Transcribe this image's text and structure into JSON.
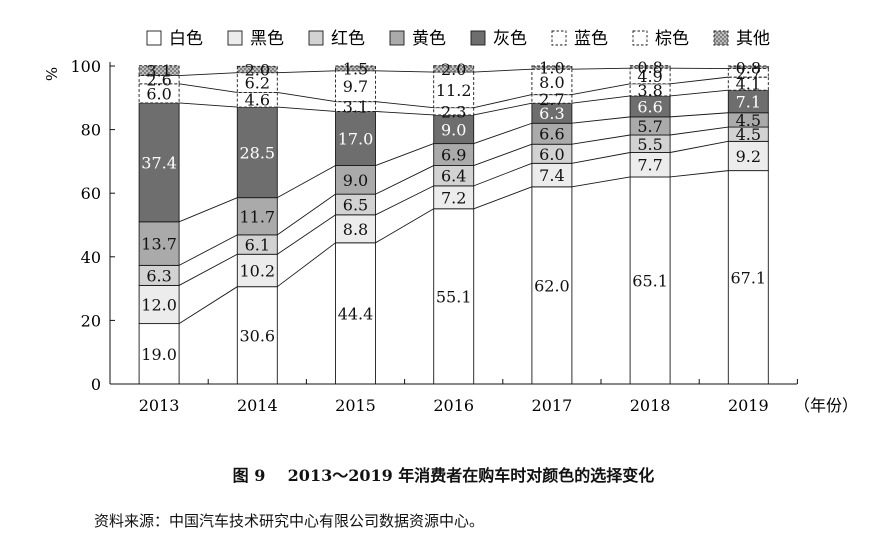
{
  "chart_data": {
    "type": "bar",
    "stacked": true,
    "categories": [
      "2013",
      "2014",
      "2015",
      "2016",
      "2017",
      "2018",
      "2019"
    ],
    "x_unit": "（年份）",
    "y_unit": "%",
    "ylim": [
      0,
      100
    ],
    "yticks": [
      0,
      20,
      40,
      60,
      80,
      100
    ],
    "legend_position": "top",
    "series": [
      {
        "name": "白色",
        "fill": "#ffffff",
        "pattern": "solid",
        "values": [
          19.0,
          30.6,
          44.4,
          55.1,
          62.0,
          65.1,
          67.1
        ],
        "labels": [
          "19.0",
          "30.6",
          "44.4",
          "55.1",
          "62.0",
          "65.1",
          "67.1"
        ]
      },
      {
        "name": "黑色",
        "fill": "#ececec",
        "pattern": "solid",
        "values": [
          12.0,
          10.2,
          8.8,
          7.2,
          7.4,
          7.7,
          9.2
        ],
        "labels": [
          "12.0",
          "10.2",
          "8.8",
          "7.2",
          "7.4",
          "7.7",
          "9.2"
        ]
      },
      {
        "name": "红色",
        "fill": "#d2d2d2",
        "pattern": "solid",
        "values": [
          6.3,
          6.1,
          6.5,
          6.4,
          6.0,
          5.5,
          4.5
        ],
        "labels": [
          "6.3",
          "6.1",
          "6.5",
          "6.4",
          "6.0",
          "5.5",
          "4.5"
        ]
      },
      {
        "name": "黄色",
        "fill": "#aaaaaa",
        "pattern": "solid",
        "values": [
          13.7,
          11.7,
          9.0,
          6.9,
          6.6,
          5.7,
          4.5
        ],
        "labels": [
          "13.7",
          "11.7",
          "9.0",
          "6.9",
          "6.6",
          "5.7",
          "4.5"
        ]
      },
      {
        "name": "灰色",
        "fill": "#6e6e6e",
        "pattern": "solid",
        "values": [
          37.4,
          28.5,
          17.0,
          9.0,
          6.3,
          6.6,
          7.1
        ],
        "labels": [
          "37.4",
          "28.5",
          "17.0",
          "9.0",
          "6.3",
          "6.6",
          "7.1"
        ]
      },
      {
        "name": "蓝色",
        "fill": "#ffffff",
        "pattern": "dashed",
        "values": [
          6.0,
          4.6,
          3.1,
          2.3,
          2.7,
          3.8,
          4.1
        ],
        "labels": [
          "6.0",
          "4.6",
          "3.1",
          "2.3",
          "2.7",
          "3.8",
          "4.1"
        ]
      },
      {
        "name": "棕色",
        "fill": "#ffffff",
        "pattern": "dashed",
        "values": [
          2.6,
          6.2,
          9.7,
          11.2,
          8.0,
          4.9,
          2.7
        ],
        "labels": [
          "2.6",
          "6.2",
          "9.7",
          "11.2",
          "8.0",
          "4.9",
          "2.7"
        ]
      },
      {
        "name": "其他",
        "fill": "#cfcfcf",
        "pattern": "dashed-dotted",
        "values": [
          3.1,
          2.0,
          1.5,
          2.0,
          1.0,
          0.8,
          0.8
        ],
        "labels": [
          "3.1",
          "2.0",
          "1.5",
          "2.0",
          "1.0",
          "0.8",
          "0.8"
        ]
      }
    ]
  },
  "caption": {
    "figure_no": "图 9",
    "title": "2013～2019 年消费者在购车时对颜色的选择变化"
  },
  "source": "资料来源：中国汽车技术研究中心有限公司数据资源中心。"
}
